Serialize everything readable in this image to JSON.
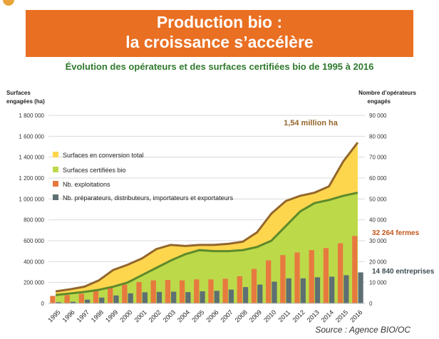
{
  "banner": {
    "line1": "Production bio :",
    "line2": "la croissance s’accélère"
  },
  "subtitle": "Évolution des opérateurs et des surfaces certifiées bio de 1995 à 2016",
  "source": "Source : Agence BIO/OC",
  "colors": {
    "banner": "#e96f22",
    "conversion": "#fdd64e",
    "certified": "#bcd94a",
    "exploitations": "#e7793f",
    "preparateurs": "#5d6f73",
    "total_line": "#93662b",
    "certified_line": "#5e8a2a"
  },
  "chart_data": {
    "type": "bar",
    "title": "Évolution des opérateurs et des surfaces certifiées bio de 1995 à 2016",
    "categories": [
      "1995",
      "1996",
      "1997",
      "1998",
      "1999",
      "2000",
      "2001",
      "2002",
      "2003",
      "2004",
      "2005",
      "2006",
      "2007",
      "2008",
      "2009",
      "2010",
      "2011",
      "2012",
      "2013",
      "2014",
      "2015",
      "2016"
    ],
    "left_axis": {
      "label_line1": "Surfaces",
      "label_line2": "engagées (ha)",
      "ylim": [
        0,
        1800000
      ],
      "ticks": [
        "0",
        "200 000",
        "400 000",
        "600 000",
        "800 000",
        "1 000 000",
        "1 200 000",
        "1 400 000",
        "1 600 000",
        "1 800 000"
      ]
    },
    "right_axis": {
      "label_line1": "Nombre d’opérateurs",
      "label_line2": "engagés",
      "ylim": [
        0,
        90000
      ],
      "ticks": [
        "0",
        "10 000",
        "20 000",
        "30 000",
        "40 000",
        "50 000",
        "60 000",
        "70 000",
        "80 000",
        "90 000"
      ]
    },
    "series": [
      {
        "name": "Surfaces en conversion total",
        "kind": "area",
        "axis": "left",
        "values": [
          115000,
          135000,
          160000,
          220000,
          320000,
          370000,
          430000,
          520000,
          560000,
          550000,
          560000,
          560000,
          570000,
          590000,
          680000,
          860000,
          980000,
          1030000,
          1060000,
          1120000,
          1360000,
          1540000
        ]
      },
      {
        "name": "Surfaces certifiées bio",
        "kind": "area",
        "axis": "left",
        "values": [
          80000,
          95000,
          110000,
          130000,
          160000,
          200000,
          270000,
          340000,
          410000,
          470000,
          510000,
          500000,
          500000,
          510000,
          540000,
          600000,
          740000,
          880000,
          960000,
          990000,
          1030000,
          1060000
        ]
      },
      {
        "name": "Nb. exploitations",
        "kind": "bar",
        "axis": "right",
        "values": [
          3600,
          4000,
          4600,
          6000,
          8000,
          9000,
          10200,
          11000,
          11200,
          11000,
          11500,
          11500,
          11800,
          13000,
          16500,
          20600,
          23100,
          24400,
          25500,
          26500,
          28800,
          32264
        ]
      },
      {
        "name": "Nb. préparateurs, distributeurs, importateurs et exportateurs",
        "kind": "bar",
        "axis": "right",
        "values": [
          600,
          800,
          1800,
          2800,
          3800,
          4800,
          5300,
          5500,
          5600,
          5400,
          5800,
          6000,
          6600,
          7800,
          9000,
          10400,
          12000,
          12000,
          12500,
          12800,
          13500,
          14840
        ]
      }
    ],
    "annotations": [
      {
        "text": "1,54 million ha",
        "series": 0,
        "color": "#93662b"
      },
      {
        "text": "32 264 fermes",
        "series": 2,
        "color": "#c0561a"
      },
      {
        "text": "14 840 entreprises",
        "series": 3,
        "color": "#3e4d52"
      }
    ],
    "legend_position": "left",
    "grid": true
  }
}
